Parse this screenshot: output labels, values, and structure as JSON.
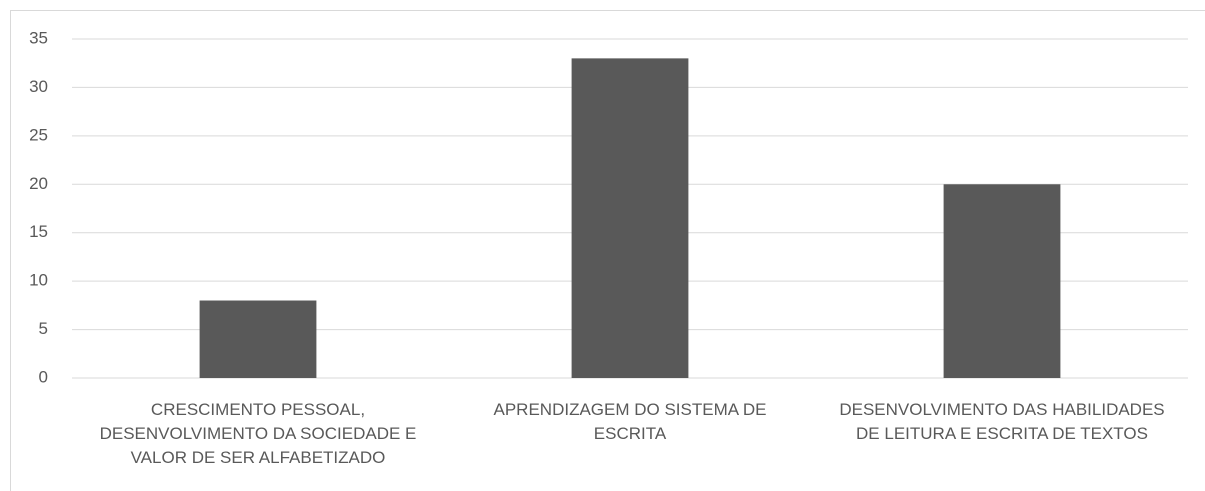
{
  "chart_data": {
    "type": "bar",
    "categories": [
      "CRESCIMENTO PESSOAL, DESENVOLVIMENTO DA SOCIEDADE E VALOR DE SER ALFABETIZADO",
      "APRENDIZAGEM DO SISTEMA DE ESCRITA",
      "DESENVOLVIMENTO DAS HABILIDADES DE LEITURA E ESCRITA DE TEXTOS"
    ],
    "values": [
      8,
      33,
      20
    ],
    "color": "#595959",
    "ylim": [
      0,
      35
    ],
    "yticks": [
      0,
      5,
      10,
      15,
      20,
      25,
      30,
      35
    ],
    "grid": true
  }
}
